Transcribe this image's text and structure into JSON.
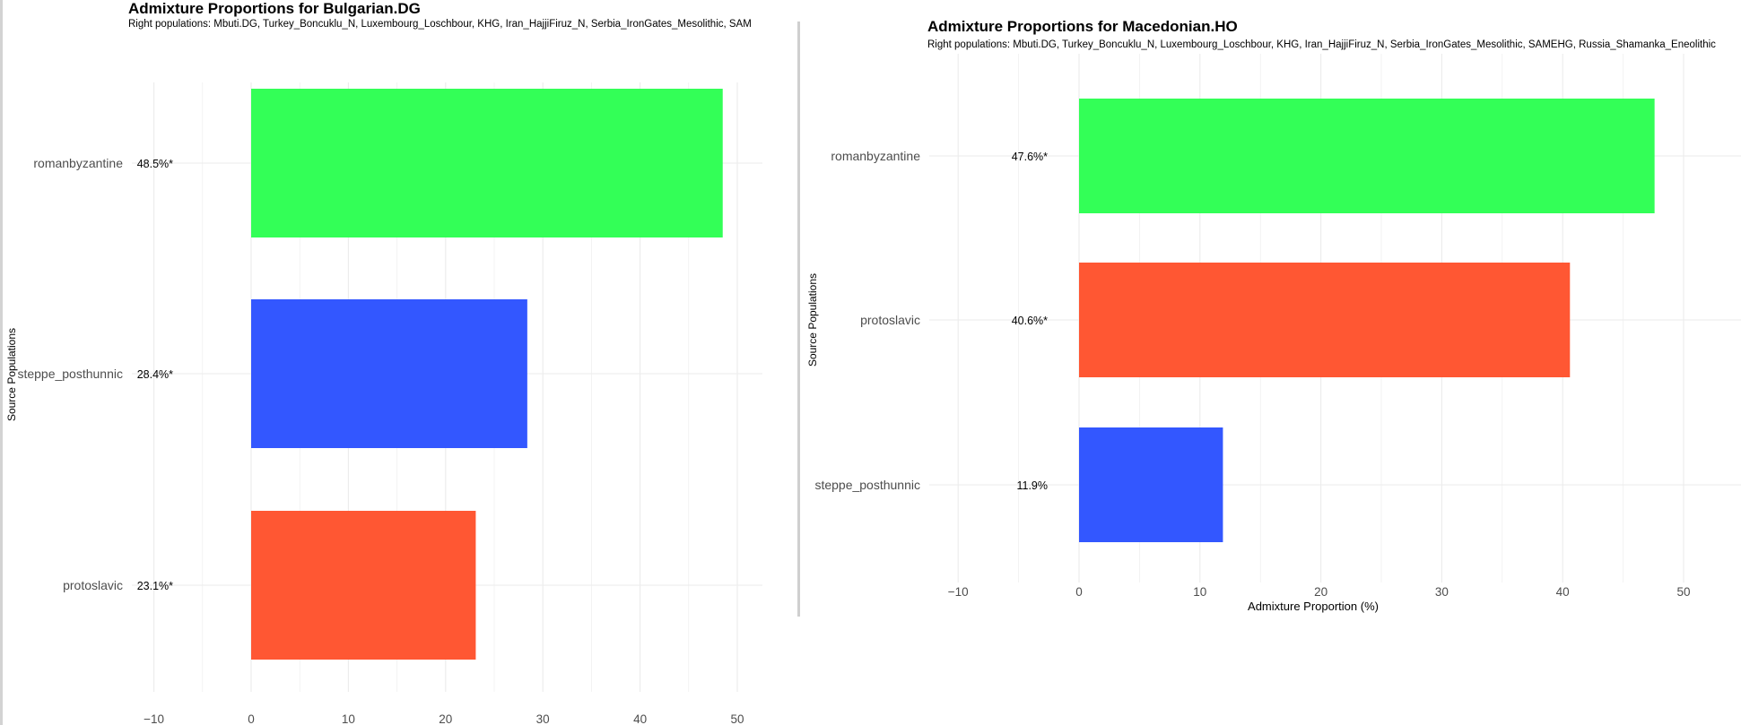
{
  "chart_data": [
    {
      "type": "bar",
      "orientation": "horizontal",
      "title": "Admixture Proportions for Bulgarian.DG",
      "subtitle": "Right populations: Mbuti.DG, Turkey_Boncuklu_N, Luxembourg_Loschbour, KHG, Iran_HajjiFiruz_N, Serbia_IronGates_Mesolithic, SAMEHG",
      "xlabel": "",
      "ylabel": "Source Populations",
      "xlim": [
        -12,
        52
      ],
      "xticks": [
        -10,
        0,
        10,
        20,
        30,
        40,
        50
      ],
      "tick_labels": [
        "−10",
        "0",
        "10",
        "20",
        "30",
        "40",
        "50"
      ],
      "grid": true,
      "categories": [
        "romanbyzantine",
        "steppe_posthunnic",
        "protoslavic"
      ],
      "values": [
        48.5,
        28.4,
        23.1
      ],
      "value_labels": [
        "48.5%*",
        "28.4%*",
        "23.1%*"
      ],
      "colors": [
        "#33ff57",
        "#3357ff",
        "#ff5733"
      ]
    },
    {
      "type": "bar",
      "orientation": "horizontal",
      "title": "Admixture Proportions for Macedonian.HO",
      "subtitle": "Right populations: Mbuti.DG, Turkey_Boncuklu_N, Luxembourg_Loschbour, KHG, Iran_HajjiFiruz_N, Serbia_IronGates_Mesolithic, SAMEHG, Russia_Shamanka_Eneolithic",
      "xlabel": "Admixture Proportion (%)",
      "ylabel": "Source Populations",
      "xlim": [
        -12,
        50.5
      ],
      "xticks": [
        -10,
        0,
        10,
        20,
        30,
        40,
        50
      ],
      "tick_labels": [
        "−10",
        "0",
        "10",
        "20",
        "30",
        "40",
        "50"
      ],
      "grid": true,
      "categories": [
        "romanbyzantine",
        "protoslavic",
        "steppe_posthunnic"
      ],
      "values": [
        47.6,
        40.6,
        11.9
      ],
      "value_labels": [
        "47.6%*",
        "40.6%*",
        "11.9%"
      ],
      "colors": [
        "#33ff57",
        "#ff5733",
        "#3357ff"
      ]
    }
  ]
}
